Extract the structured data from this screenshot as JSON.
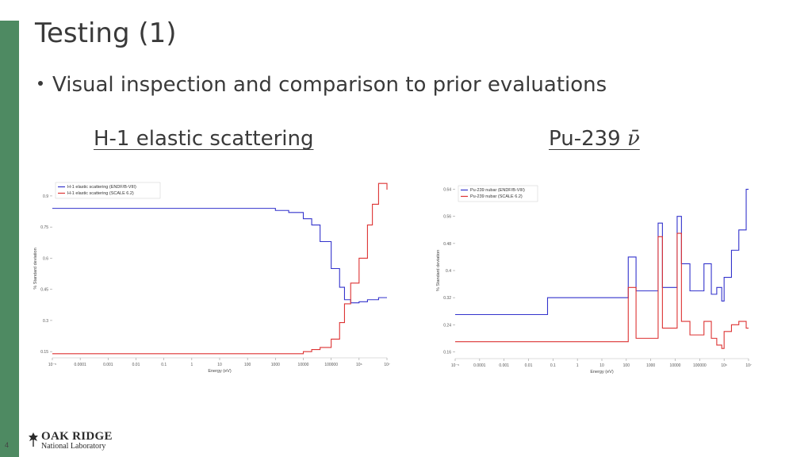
{
  "slide": {
    "title": "Testing (1)",
    "bullet": "Visual inspection and comparison to prior evaluations",
    "left_heading": "H-1 elastic scattering",
    "right_heading_text": "Pu-239 ",
    "right_heading_symbol": "ν̄",
    "page_number": "4",
    "logo_name": "OAK RIDGE",
    "logo_sub": "National Laboratory",
    "accent_color": "#4e8a62"
  },
  "chart_data": [
    {
      "type": "line",
      "xscale": "log",
      "xlabel": "Energy (eV)",
      "ylabel": "% Standard deviation",
      "x_ticks": [
        "10⁻⁵",
        "0.0001",
        "0.001",
        "0.01",
        "0.1",
        "1",
        "10",
        "100",
        "1000",
        "10000",
        "100000",
        "10⁶",
        "10⁷"
      ],
      "y_ticks": [
        "0.15",
        "0.3",
        "0.45",
        "0.6",
        "0.75",
        "0.9"
      ],
      "ylim": [
        0.12,
        0.98
      ],
      "legend_position": "top-left",
      "series": [
        {
          "name": "H-1 elastic scattering (ENDF/B-VIII)",
          "color": "#3333cc",
          "x": [
            1e-05,
            100.0,
            1000.0,
            3000.0,
            10000.0,
            20000.0,
            40000.0,
            100000.0,
            200000.0,
            300000.0,
            500000.0,
            1000000.0,
            2000000.0,
            5000000.0,
            10000000.0
          ],
          "y": [
            0.84,
            0.84,
            0.83,
            0.82,
            0.79,
            0.76,
            0.68,
            0.55,
            0.46,
            0.4,
            0.385,
            0.39,
            0.4,
            0.41,
            0.41
          ]
        },
        {
          "name": "H-1 elastic scattering (SCALE 6.2)",
          "color": "#dd3333",
          "x": [
            1e-05,
            1000.0,
            10000.0,
            20000.0,
            40000.0,
            100000.0,
            200000.0,
            300000.0,
            500000.0,
            1000000.0,
            2000000.0,
            3000000.0,
            5000000.0,
            10000000.0
          ],
          "y": [
            0.14,
            0.14,
            0.15,
            0.16,
            0.17,
            0.21,
            0.29,
            0.38,
            0.48,
            0.6,
            0.76,
            0.86,
            0.96,
            0.93
          ]
        }
      ]
    },
    {
      "type": "line",
      "xscale": "log",
      "xlabel": "Energy (eV)",
      "ylabel": "% Standard deviation",
      "x_ticks": [
        "10⁻⁵",
        "0.0001",
        "0.001",
        "0.01",
        "0.1",
        "1",
        "10",
        "100",
        "1000",
        "10000",
        "100000",
        "10⁶",
        "10⁷"
      ],
      "y_ticks": [
        "0.16",
        "0.24",
        "0.32",
        "0.4",
        "0.48",
        "0.56",
        "0.64"
      ],
      "ylim": [
        0.14,
        0.66
      ],
      "legend_position": "top-left",
      "series": [
        {
          "name": "Pu-239 nubar (ENDF/B-VIII)",
          "color": "#3333cc",
          "x": [
            1e-05,
            0.03,
            0.06,
            80,
            120,
            250,
            2000,
            3000,
            12000,
            18000,
            40000,
            150000,
            300000,
            500000,
            800000,
            1000000.0,
            2000000.0,
            4000000.0,
            8000000.0,
            10000000.0
          ],
          "y": [
            0.27,
            0.27,
            0.32,
            0.32,
            0.44,
            0.34,
            0.54,
            0.35,
            0.56,
            0.42,
            0.34,
            0.42,
            0.33,
            0.35,
            0.31,
            0.38,
            0.46,
            0.52,
            0.64,
            0.64
          ]
        },
        {
          "name": "Pu-239 nubar (SCALE 6.2)",
          "color": "#dd3333",
          "x": [
            1e-05,
            80,
            120,
            250,
            2000,
            3000,
            12000,
            18000,
            40000,
            150000,
            300000,
            500000,
            800000,
            1000000.0,
            2000000.0,
            4000000.0,
            8000000.0,
            10000000.0
          ],
          "y": [
            0.19,
            0.19,
            0.35,
            0.2,
            0.5,
            0.23,
            0.51,
            0.25,
            0.21,
            0.25,
            0.2,
            0.18,
            0.17,
            0.22,
            0.24,
            0.25,
            0.23,
            0.23
          ]
        }
      ]
    }
  ]
}
